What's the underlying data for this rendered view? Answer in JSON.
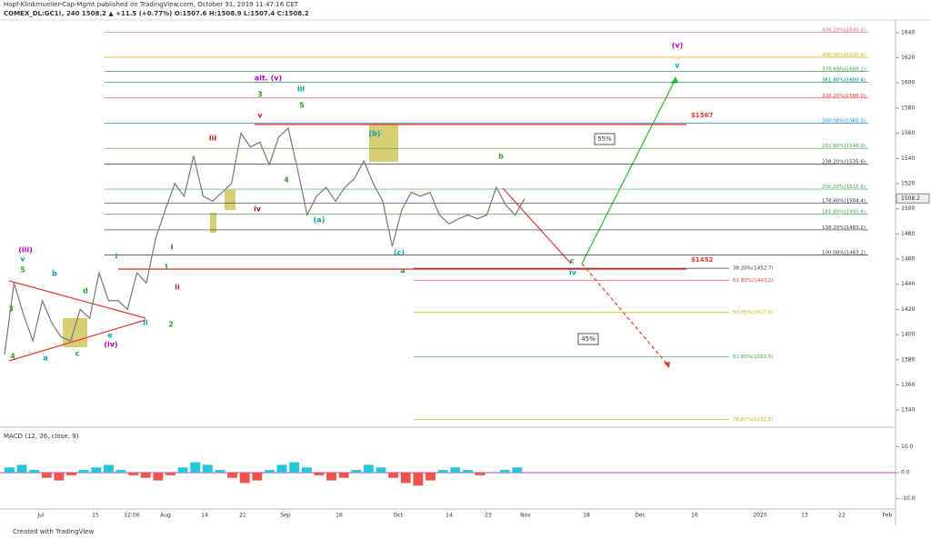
{
  "header": {
    "publisher": "Hopf-Klinkmueller-Cap-Mgmt published on TradingView.com, October 31, 2019 11:47:16 CET",
    "symbol": "COMEX_DL:GC1!, 240  1508.2  ▲ +11.5 (+0.77%) O:1507.6 H:1508.9 L:1507.4 C:1508.2"
  },
  "footer": "Created with TradingView",
  "chart_data": {
    "type": "line",
    "price": [
      1384,
      1441,
      1416,
      1395,
      1427,
      1409,
      1398,
      1395,
      1420,
      1413,
      1449,
      1427,
      1427,
      1420,
      1449,
      1441,
      1477,
      1499,
      1520,
      1510,
      1542,
      1510,
      1506,
      1513,
      1520,
      1560,
      1549,
      1553,
      1535,
      1557,
      1564,
      1531,
      1495,
      1510,
      1517,
      1506,
      1517,
      1524,
      1538,
      1520,
      1506,
      1470,
      1499,
      1513,
      1510,
      1513,
      1495,
      1488,
      1492,
      1495,
      1492,
      1495,
      1517,
      1503,
      1495,
      1508
    ],
    "color": "#777777",
    "ylim": [
      1330,
      1650
    ],
    "yticks": [
      1340,
      1360,
      1380,
      1400,
      1420,
      1440,
      1460,
      1480,
      1500,
      1520,
      1540,
      1560,
      1580,
      1600,
      1620,
      1640
    ],
    "last_price": 1508.2,
    "time_labels": [
      "Jul",
      "15",
      "12:00",
      "Aug",
      "14",
      "21",
      "Sep",
      "16",
      "Oct",
      "14",
      "23",
      "Nov",
      "18",
      "Dec",
      "16",
      "2020",
      "13",
      "22",
      "Feb"
    ],
    "fib_upper": [
      {
        "value": 1640.4,
        "label": "438.20%(1640.4)",
        "color": "#e06088"
      },
      {
        "value": 1620.4,
        "label": "400.00%(1620.4)",
        "color": "#c8b800"
      },
      {
        "value": 1609.2,
        "label": "378.60%(1609.2)",
        "color": "#43a047"
      },
      {
        "value": 1600.4,
        "label": "361.80%(1600.4)",
        "color": "#00796b"
      },
      {
        "value": 1588.0,
        "label": "338.20%(1588.0)",
        "color": "#e53935"
      },
      {
        "value": 1568.0,
        "label": "300.00%(1568.0)",
        "color": "#1e88e5"
      },
      {
        "value": 1548.0,
        "label": "261.80%(1548.0)",
        "color": "#43a047"
      },
      {
        "value": 1535.6,
        "label": "238.20%(1535.6)",
        "color": "#333333"
      },
      {
        "value": 1515.6,
        "label": "200.00%(1515.6)",
        "color": "#43a047"
      },
      {
        "value": 1504.4,
        "label": "178.60%(1504.4)",
        "color": "#333333"
      },
      {
        "value": 1495.6,
        "label": "161.80%(1495.6)",
        "color": "#43a047"
      },
      {
        "value": 1483.2,
        "label": "138.20%(1483.2)",
        "color": "#333333"
      },
      {
        "value": 1463.2,
        "label": "100.00%(1463.2)",
        "color": "#333333"
      }
    ],
    "fib_lower": [
      {
        "value": 1452.7,
        "label": "38.20%(1452.7)",
        "color": "#333333"
      },
      {
        "value": 1443.2,
        "label": "61.80%(1443.2)",
        "color": "#e53935"
      },
      {
        "value": 1417.6,
        "label": "50.00%(1417.6)",
        "color": "#c8b800"
      },
      {
        "value": 1382.5,
        "label": "61.80%(1382.5)",
        "color": "#43a047"
      },
      {
        "value": 1332.6,
        "label": "78.60%(1332.6)",
        "color": "#c8b800"
      }
    ],
    "targets": [
      {
        "value": 1567,
        "label": "$1567"
      },
      {
        "value": 1452,
        "label": "$1452"
      }
    ],
    "scenarios": [
      "55%",
      "45%"
    ],
    "waves": [
      {
        "text": "(iii)",
        "color": "#c000c0"
      },
      {
        "text": "v",
        "color": "#00a0b0"
      },
      {
        "text": "5",
        "color": "#2e9e2e"
      },
      {
        "text": "3",
        "color": "#2e9e2e"
      },
      {
        "text": "4",
        "color": "#2e9e2e"
      },
      {
        "text": "b",
        "color": "#00a0b0"
      },
      {
        "text": "d",
        "color": "#2e9e2e"
      },
      {
        "text": "a",
        "color": "#00a0b0"
      },
      {
        "text": "c",
        "color": "#00a0b0"
      },
      {
        "text": "e",
        "color": "#00a0b0"
      },
      {
        "text": "(iv)",
        "color": "#c000c0"
      },
      {
        "text": "i",
        "color": "#00a0b0"
      },
      {
        "text": "ii",
        "color": "#00a0b0"
      },
      {
        "text": "2",
        "color": "#2e9e2e"
      },
      {
        "text": "1",
        "color": "#2e9e2e"
      },
      {
        "text": "i",
        "color": "#b71c1c"
      },
      {
        "text": "ii",
        "color": "#b71c1c"
      },
      {
        "text": "iii",
        "color": "#b71c1c"
      },
      {
        "text": "iv",
        "color": "#b71c1c"
      },
      {
        "text": "alt. (v)",
        "color": "#c000c0"
      },
      {
        "text": "3",
        "color": "#2e9e2e"
      },
      {
        "text": "v",
        "color": "#b71c1c"
      },
      {
        "text": "iii",
        "color": "#00a0b0"
      },
      {
        "text": "5",
        "color": "#2e9e2e"
      },
      {
        "text": "4",
        "color": "#2e9e2e"
      },
      {
        "text": "(a)",
        "color": "#00a0b0"
      },
      {
        "text": "(b)",
        "color": "#00a0b0"
      },
      {
        "text": "(c)",
        "color": "#00a0b0"
      },
      {
        "text": "a",
        "color": "#2e9e2e"
      },
      {
        "text": "b",
        "color": "#2e9e2e"
      },
      {
        "text": "c",
        "color": "#2e9e2e"
      },
      {
        "text": "iv",
        "color": "#00a0b0"
      },
      {
        "text": "(v)",
        "color": "#c000c0"
      },
      {
        "text": "v",
        "color": "#00a0b0"
      }
    ],
    "macd": {
      "title": "MACD (12, 26, close, 9)",
      "values": [
        2,
        3,
        1,
        -2,
        -3,
        -1,
        1,
        2,
        3,
        1,
        -1,
        -2,
        -3,
        -1,
        2,
        4,
        3,
        1,
        -2,
        -4,
        -3,
        1,
        3,
        4,
        2,
        -1,
        -3,
        -2,
        1,
        3,
        2,
        -2,
        -4,
        -5,
        -3,
        1,
        2,
        1,
        -1,
        0,
        1,
        2
      ],
      "ylim": [
        -14,
        14
      ],
      "yticks": [
        {
          "value": 10,
          "label": "10.0"
        },
        {
          "value": 0,
          "label": "0.0"
        },
        {
          "value": -10,
          "label": "-10.0"
        }
      ]
    }
  }
}
